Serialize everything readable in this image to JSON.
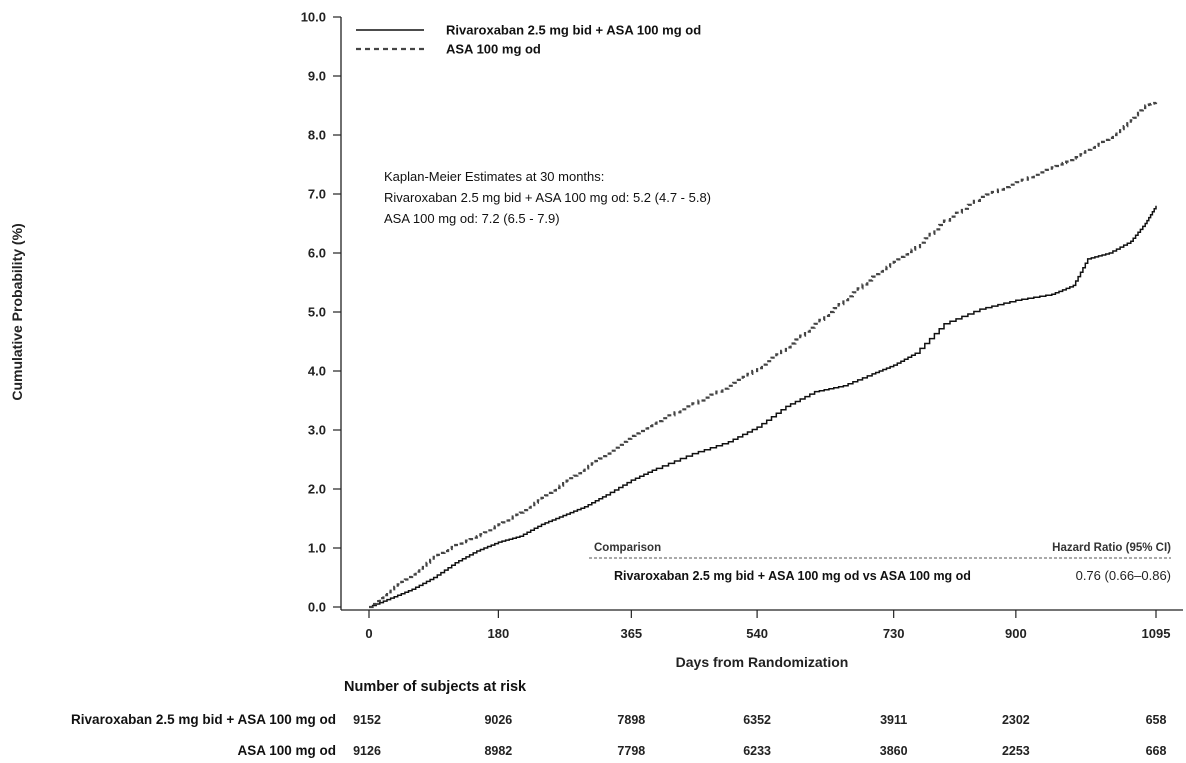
{
  "chart_data": {
    "type": "line",
    "ylabel": "Cumulative Probability (%)",
    "xlabel": "Days from Randomization",
    "ylim": [
      0,
      10
    ],
    "xlim": [
      0,
      1095
    ],
    "yticks": [
      "0.0",
      "1.0",
      "2.0",
      "3.0",
      "4.0",
      "5.0",
      "6.0",
      "7.0",
      "8.0",
      "9.0",
      "10.0"
    ],
    "xticks": [
      0,
      180,
      365,
      540,
      730,
      900,
      1095
    ],
    "grid": false,
    "legend_position": "top-left",
    "series": [
      {
        "name": "Rivaroxaban 2.5 mg bid + ASA 100 mg od",
        "style": "solid",
        "color": "#111111",
        "x": [
          0,
          30,
          60,
          90,
          120,
          150,
          180,
          210,
          240,
          270,
          300,
          330,
          365,
          400,
          450,
          500,
          540,
          580,
          620,
          660,
          700,
          730,
          760,
          800,
          850,
          900,
          950,
          980,
          1000,
          1030,
          1060,
          1080,
          1095
        ],
        "y": [
          0,
          0.15,
          0.3,
          0.5,
          0.75,
          0.95,
          1.1,
          1.2,
          1.4,
          1.55,
          1.7,
          1.9,
          2.15,
          2.35,
          2.6,
          2.8,
          3.05,
          3.4,
          3.65,
          3.75,
          3.95,
          4.1,
          4.3,
          4.8,
          5.05,
          5.2,
          5.3,
          5.45,
          5.9,
          6.0,
          6.2,
          6.5,
          6.8
        ]
      },
      {
        "name": "ASA 100 mg od",
        "style": "dashed",
        "color": "#444444",
        "x": [
          0,
          30,
          60,
          90,
          120,
          150,
          180,
          210,
          240,
          270,
          300,
          330,
          365,
          400,
          450,
          500,
          540,
          580,
          620,
          660,
          700,
          730,
          760,
          800,
          850,
          900,
          950,
          980,
          1000,
          1030,
          1060,
          1080,
          1095
        ],
        "y": [
          0,
          0.3,
          0.55,
          0.85,
          1.05,
          1.2,
          1.4,
          1.6,
          1.85,
          2.1,
          2.35,
          2.6,
          2.9,
          3.15,
          3.45,
          3.75,
          4.05,
          4.4,
          4.8,
          5.2,
          5.6,
          5.85,
          6.1,
          6.55,
          6.95,
          7.2,
          7.45,
          7.6,
          7.75,
          7.95,
          8.25,
          8.5,
          8.55
        ]
      }
    ],
    "annotation": {
      "lines": [
        "Kaplan-Meier Estimates at 30 months:",
        "Rivaroxaban 2.5 mg bid + ASA 100 mg od: 5.2 (4.7 - 5.8)",
        "ASA 100 mg od: 7.2 (6.5 - 7.9)"
      ]
    },
    "hazard_table": {
      "col1_header": "Comparison",
      "col2_header": "Hazard Ratio (95% CI)",
      "comparison": "Rivaroxaban 2.5 mg bid + ASA 100 mg od vs ASA 100 mg od",
      "value": "0.76 (0.66–0.86)"
    },
    "risk_table": {
      "header": "Number of subjects at risk",
      "rows": [
        {
          "label": "Rivaroxaban 2.5 mg bid + ASA 100 mg od",
          "values": [
            "9152",
            "9026",
            "7898",
            "6352",
            "3911",
            "2302",
            "658"
          ]
        },
        {
          "label": "ASA 100 mg od",
          "values": [
            "9126",
            "8982",
            "7798",
            "6233",
            "3860",
            "2253",
            "668"
          ]
        }
      ]
    }
  }
}
